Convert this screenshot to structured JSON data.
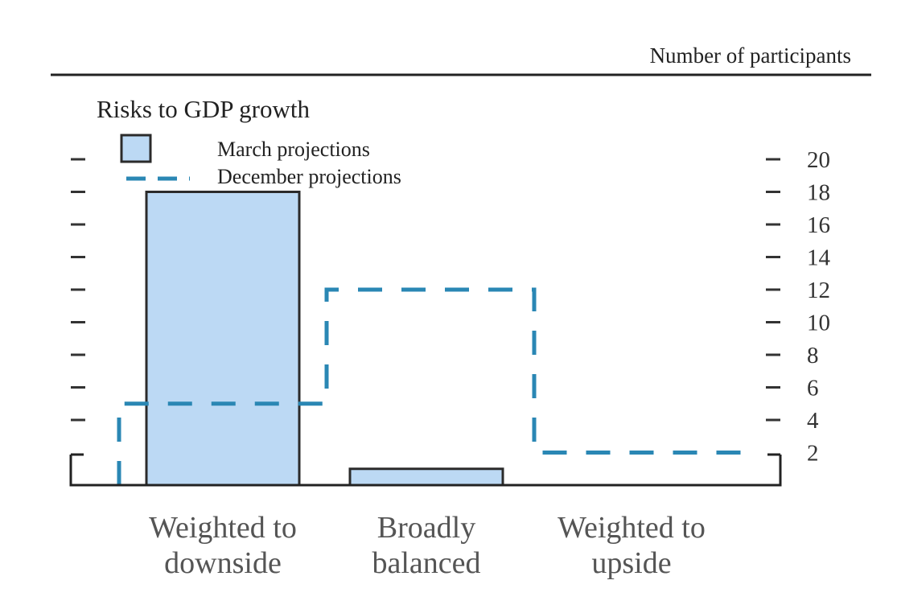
{
  "units_label": "Number of participants",
  "chart_data": {
    "type": "bar",
    "title": "Risks to GDP growth",
    "categories": [
      [
        "Weighted to",
        "downside"
      ],
      [
        "Broadly",
        "balanced"
      ],
      [
        "Weighted to",
        "upside"
      ]
    ],
    "series": [
      {
        "name": "March projections",
        "style": "bars",
        "values": [
          18,
          1,
          0
        ]
      },
      {
        "name": "December projections",
        "style": "dashed-step-outline",
        "values": [
          5,
          12,
          2
        ]
      }
    ],
    "yticks": [
      2,
      4,
      6,
      8,
      10,
      12,
      14,
      16,
      18,
      20
    ],
    "ylim": [
      0,
      20
    ],
    "xlabel": "",
    "ylabel": "Number of participants",
    "legend": "top-left",
    "colors": {
      "bar_fill": "#bcd9f4",
      "bar_stroke": "#2b2b2b",
      "dashed": "#2a87b4",
      "axis": "#222222"
    }
  }
}
